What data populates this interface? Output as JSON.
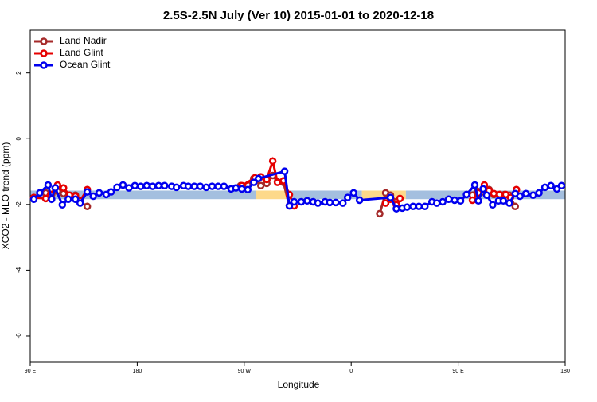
{
  "chart_data": {
    "type": "line",
    "title": "2.5S-2.5N July (Ver 10)   2015-01-01 to 2020-12-18",
    "x_label": "Longitude",
    "y_label": "XCO2 - MLO trend (ppm)",
    "xlim": [
      90,
      540
    ],
    "ylim": [
      -6.8,
      3.3
    ],
    "xticks": [
      {
        "value": 90,
        "label": "90 E"
      },
      180,
      {
        "value": 270,
        "label": "90 W"
      },
      {
        "value": 360,
        "label": "0"
      },
      {
        "value": 450,
        "label": "90 E"
      },
      {
        "value": 540,
        "label": "180"
      }
    ],
    "yticks": [
      2,
      0,
      -2,
      -4,
      -6
    ],
    "legend": "top-left",
    "bands": [
      {
        "xmin": 90,
        "xmax": 280,
        "ymin": -1.84,
        "ymax": -1.58,
        "color": "#a4bfdf"
      },
      {
        "xmin": 280,
        "xmax": 305,
        "ymin": -1.84,
        "ymax": -1.58,
        "color": "#fdd98a"
      },
      {
        "xmin": 305,
        "xmax": 369,
        "ymin": -1.84,
        "ymax": -1.58,
        "color": "#a4bfdf"
      },
      {
        "xmin": 369,
        "xmax": 406,
        "ymin": -1.84,
        "ymax": -1.58,
        "color": "#fdd98a"
      },
      {
        "xmin": 406,
        "xmax": 540,
        "ymin": -1.84,
        "ymax": -1.58,
        "color": "#a4bfdf"
      }
    ],
    "series": [
      {
        "name": "Land Nadir",
        "color": "#a52a2a",
        "x": [
          93,
          103,
          108,
          113,
          118,
          123,
          128,
          132,
          138,
          null,
          267,
          273,
          278,
          284,
          289,
          294,
          298,
          303,
          308,
          null,
          384,
          389,
          393,
          398,
          null,
          462,
          466,
          471,
          476,
          480,
          485,
          489,
          493,
          498
        ],
        "values": [
          -1.8,
          -1.65,
          -1.7,
          -1.6,
          -1.67,
          -1.77,
          -1.72,
          -1.92,
          -2.06,
          null,
          -1.43,
          -1.41,
          -1.21,
          -1.43,
          -1.36,
          -1.12,
          -1.31,
          -1.33,
          -2.04,
          null,
          -2.28,
          -1.65,
          -1.72,
          -1.92,
          null,
          -1.72,
          -1.6,
          -1.62,
          -1.55,
          -1.7,
          -1.7,
          -1.7,
          -1.72,
          -2.06
        ]
      },
      {
        "name": "Land Glint",
        "color": "#e60000",
        "x": [
          93,
          103,
          107,
          113,
          118,
          123,
          128,
          132,
          138,
          null,
          268,
          279,
          284,
          289,
          294,
          298,
          303,
          308,
          312,
          null,
          389,
          393,
          398,
          401,
          null,
          462,
          467,
          472,
          476,
          480,
          485,
          490,
          494,
          499
        ],
        "values": [
          -1.79,
          -1.82,
          -1.7,
          -1.41,
          -1.5,
          -1.72,
          -1.75,
          -1.89,
          -1.55,
          null,
          -1.43,
          -1.19,
          -1.16,
          -1.24,
          -0.68,
          -1.33,
          -1.28,
          -1.7,
          -2.04,
          null,
          -1.96,
          -1.84,
          -2.01,
          -1.82,
          null,
          -1.87,
          -1.65,
          -1.41,
          -1.58,
          -1.67,
          -1.7,
          -1.7,
          -1.79,
          -1.55
        ]
      },
      {
        "name": "Ocean Glint",
        "color": "#0000ee",
        "x": [
          93,
          98,
          105,
          108,
          111,
          117,
          122,
          128,
          132,
          138,
          143,
          148,
          154,
          158,
          163,
          168,
          173,
          178,
          183,
          188,
          193,
          198,
          203,
          209,
          213,
          219,
          223,
          228,
          233,
          238,
          243,
          248,
          253,
          259,
          263,
          268,
          273,
          278,
          282,
          304,
          308,
          312,
          318,
          323,
          328,
          332,
          338,
          342,
          347,
          353,
          357,
          362,
          367,
          393,
          398,
          403,
          407,
          412,
          417,
          422,
          428,
          432,
          437,
          442,
          447,
          452,
          457,
          464,
          467,
          471,
          474,
          479,
          484,
          488,
          493,
          498,
          502,
          507,
          513,
          518,
          523,
          528,
          533,
          537
        ],
        "values": [
          -1.84,
          -1.65,
          -1.41,
          -1.84,
          -1.5,
          -2.01,
          -1.84,
          -1.84,
          -1.96,
          -1.62,
          -1.75,
          -1.65,
          -1.7,
          -1.62,
          -1.48,
          -1.41,
          -1.5,
          -1.43,
          -1.45,
          -1.43,
          -1.45,
          -1.43,
          -1.43,
          -1.45,
          -1.48,
          -1.43,
          -1.45,
          -1.45,
          -1.45,
          -1.48,
          -1.45,
          -1.45,
          -1.45,
          -1.53,
          -1.5,
          -1.53,
          -1.55,
          -1.33,
          -1.21,
          -0.99,
          -2.04,
          -1.92,
          -1.92,
          -1.89,
          -1.92,
          -1.96,
          -1.92,
          -1.94,
          -1.94,
          -1.96,
          -1.79,
          -1.65,
          -1.87,
          -1.79,
          -2.13,
          -2.11,
          -2.08,
          -2.06,
          -2.06,
          -2.06,
          -1.92,
          -1.96,
          -1.92,
          -1.84,
          -1.87,
          -1.89,
          -1.7,
          -1.41,
          -1.89,
          -1.53,
          -1.72,
          -2.01,
          -1.89,
          -1.89,
          -1.96,
          -1.67,
          -1.75,
          -1.67,
          -1.72,
          -1.65,
          -1.48,
          -1.43,
          -1.53,
          -1.43
        ]
      }
    ]
  }
}
